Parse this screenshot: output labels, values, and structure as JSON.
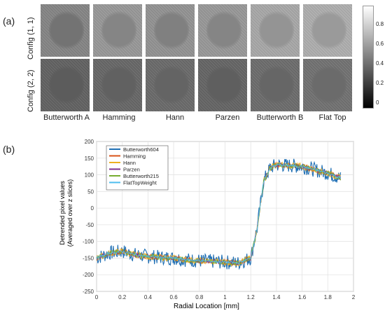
{
  "panel_a": {
    "label": "(a)",
    "row_labels": [
      "Config (1, 1)",
      "Config (2, 2)"
    ],
    "column_labels": [
      "Butterworth A",
      "Hamming",
      "Hann",
      "Parzen",
      "Butterworth B",
      "Flat Top"
    ],
    "row1_brightness": [
      0.55,
      0.62,
      0.6,
      0.62,
      0.68,
      0.7
    ],
    "row2_brightness": [
      0.42,
      0.44,
      0.45,
      0.43,
      0.46,
      0.48
    ],
    "colorbar_ticks": [
      "0.8",
      "0.6",
      "0.4",
      "0.2",
      "0"
    ]
  },
  "panel_b": {
    "label": "(b)"
  },
  "chart_data": {
    "type": "line",
    "xlabel": "Radial Location [mm]",
    "ylabel": "Detrended pixel values (Averaged over z slices)",
    "ylabel_line1": "Detrended pixel values",
    "ylabel_line2": "(Averaged over z slices)",
    "xlim": [
      0,
      2
    ],
    "ylim": [
      -250,
      200
    ],
    "xticks": [
      "0",
      "0.2",
      "0.4",
      "0.6",
      "0.8",
      "1",
      "1.2",
      "1.4",
      "1.6",
      "1.8",
      "2"
    ],
    "yticks": [
      "200",
      "150",
      "100",
      "50",
      "0",
      "-50",
      "-100",
      "-150",
      "-200",
      "-250"
    ],
    "grid": true,
    "legend_position": "top-left",
    "x": [
      0,
      0.1,
      0.2,
      0.3,
      0.4,
      0.5,
      0.6,
      0.7,
      0.8,
      0.9,
      1.0,
      1.1,
      1.2,
      1.25,
      1.3,
      1.35,
      1.4,
      1.5,
      1.6,
      1.7,
      1.8,
      1.9
    ],
    "series": [
      {
        "name": "Butterworth604",
        "color": "#1f6fb4",
        "noise": 22,
        "values": [
          -150,
          -135,
          -130,
          -140,
          -145,
          -148,
          -150,
          -155,
          -158,
          -160,
          -162,
          -165,
          -150,
          -60,
          80,
          120,
          130,
          128,
          125,
          115,
          105,
          90
        ]
      },
      {
        "name": "Hamming",
        "color": "#d95319",
        "noise": 8,
        "values": [
          -150,
          -135,
          -130,
          -140,
          -145,
          -148,
          -150,
          -155,
          -158,
          -160,
          -162,
          -165,
          -150,
          -60,
          80,
          120,
          130,
          128,
          125,
          115,
          105,
          90
        ]
      },
      {
        "name": "Hann",
        "color": "#edb120",
        "noise": 10,
        "values": [
          -150,
          -135,
          -130,
          -140,
          -145,
          -148,
          -150,
          -155,
          -158,
          -160,
          -162,
          -165,
          -150,
          -60,
          80,
          120,
          130,
          128,
          125,
          115,
          105,
          90
        ]
      },
      {
        "name": "Parzen",
        "color": "#7e2f8e",
        "noise": 6,
        "values": [
          -150,
          -135,
          -130,
          -140,
          -145,
          -148,
          -150,
          -155,
          -158,
          -160,
          -162,
          -165,
          -150,
          -60,
          80,
          120,
          130,
          128,
          125,
          115,
          105,
          90
        ]
      },
      {
        "name": "Butterworth215",
        "color": "#77ac30",
        "noise": 7,
        "values": [
          -150,
          -135,
          -130,
          -140,
          -145,
          -148,
          -150,
          -155,
          -158,
          -160,
          -162,
          -165,
          -150,
          -60,
          80,
          120,
          130,
          128,
          125,
          115,
          105,
          90
        ]
      },
      {
        "name": "FlatTopWeight",
        "color": "#4dbeee",
        "noise": 4,
        "values": [
          -150,
          -135,
          -130,
          -140,
          -145,
          -148,
          -150,
          -155,
          -158,
          -160,
          -162,
          -165,
          -150,
          -60,
          80,
          120,
          130,
          128,
          125,
          115,
          105,
          90
        ]
      }
    ]
  }
}
